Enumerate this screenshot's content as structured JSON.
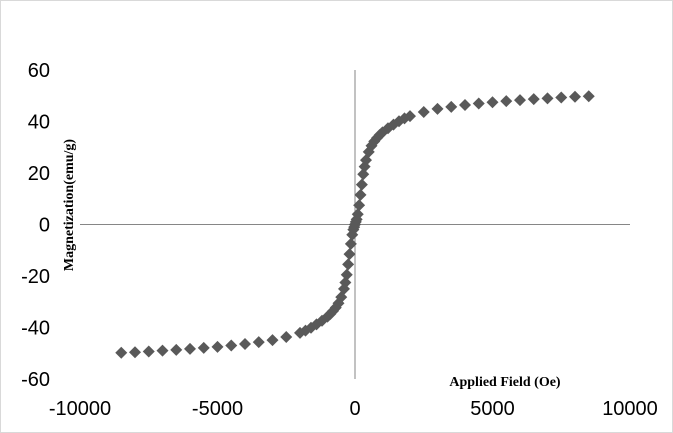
{
  "chart_data": {
    "type": "scatter",
    "title": "",
    "xlabel": "Applied Field (Oe)",
    "ylabel": "Magnetization(emu/g)",
    "xlim": [
      -10000,
      10000
    ],
    "ylim": [
      -60,
      60
    ],
    "x_ticks": [
      -10000,
      -5000,
      0,
      5000,
      10000
    ],
    "y_ticks": [
      60,
      40,
      20,
      0,
      -20,
      -40,
      -60
    ],
    "grid": false,
    "legend": "none",
    "marker": "diamond",
    "marker_color": "#595959",
    "series": [
      {
        "x": [
          -8500,
          -8000,
          -7500,
          -7000,
          -6500,
          -6000,
          -5500,
          -5000,
          -4500,
          -4000,
          -3500,
          -3000,
          -2500,
          -2000,
          -1800,
          -1600,
          -1400,
          -1200,
          -1000,
          -900,
          -800,
          -700,
          -600,
          -500,
          -400,
          -350,
          -300,
          -250,
          -200,
          -150,
          -100,
          -60,
          -30,
          0,
          30,
          60,
          100,
          150,
          200,
          250,
          300,
          350,
          400,
          500,
          600,
          700,
          800,
          900,
          1000,
          1200,
          1400,
          1600,
          1800,
          2000,
          2500,
          3000,
          3500,
          4000,
          4500,
          5000,
          5500,
          6000,
          6500,
          7000,
          7500,
          8000,
          8500
        ],
        "y": [
          -49.8,
          -49.6,
          -49.3,
          -49.0,
          -48.7,
          -48.3,
          -47.9,
          -47.5,
          -47.0,
          -46.4,
          -45.7,
          -44.9,
          -43.7,
          -42.1,
          -41.2,
          -40.1,
          -38.8,
          -37.4,
          -35.8,
          -34.8,
          -33.6,
          -32.3,
          -30.6,
          -28.2,
          -25.0,
          -22.5,
          -19.5,
          -15.5,
          -11.5,
          -7.5,
          -4.0,
          -2.0,
          -1.0,
          0.0,
          1.0,
          2.0,
          4.0,
          7.5,
          11.5,
          15.5,
          19.5,
          22.5,
          25.0,
          28.2,
          30.6,
          32.3,
          33.6,
          34.8,
          35.8,
          37.4,
          38.8,
          40.1,
          41.2,
          42.1,
          43.7,
          44.9,
          45.7,
          46.4,
          47.0,
          47.5,
          47.9,
          48.3,
          48.7,
          49.0,
          49.3,
          49.6,
          49.8
        ]
      }
    ]
  }
}
